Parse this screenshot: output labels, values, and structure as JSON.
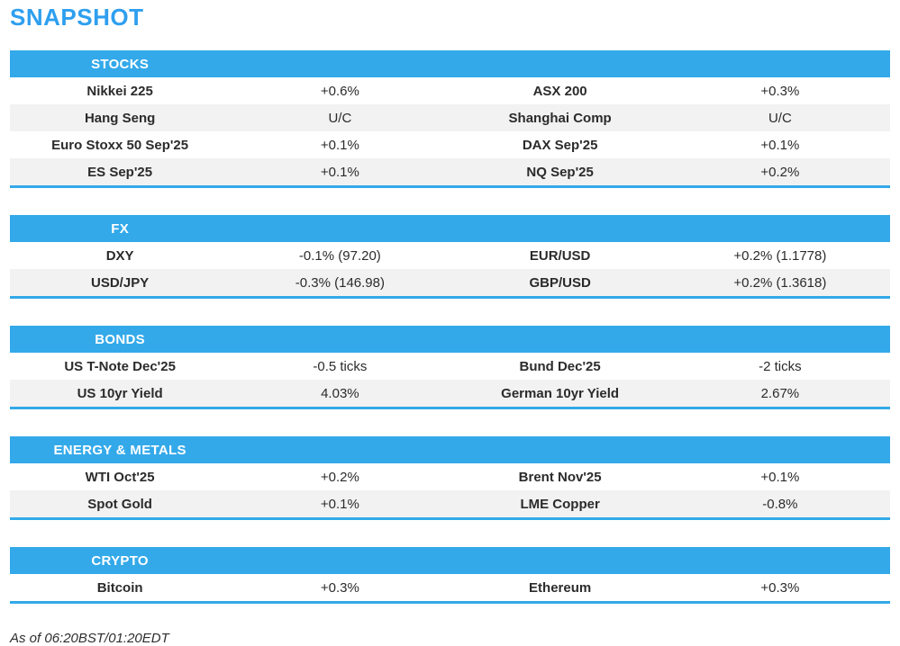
{
  "page_title": "SNAPSHOT",
  "colors": {
    "accent": "#33A9E9",
    "title": "#2E9FEF",
    "row_alt": "#F2F2F2",
    "text": "#2B2B2B"
  },
  "sections": [
    {
      "title": "STOCKS",
      "rows": [
        {
          "left_label": "Nikkei 225",
          "left_value": "+0.6%",
          "right_label": "ASX 200",
          "right_value": "+0.3%"
        },
        {
          "left_label": "Hang Seng",
          "left_value": "U/C",
          "right_label": "Shanghai Comp",
          "right_value": "U/C"
        },
        {
          "left_label": "Euro Stoxx 50 Sep'25",
          "left_value": "+0.1%",
          "right_label": "DAX Sep'25",
          "right_value": "+0.1%"
        },
        {
          "left_label": "ES Sep'25",
          "left_value": "+0.1%",
          "right_label": "NQ Sep'25",
          "right_value": "+0.2%"
        }
      ]
    },
    {
      "title": "FX",
      "rows": [
        {
          "left_label": "DXY",
          "left_value": "-0.1% (97.20)",
          "right_label": "EUR/USD",
          "right_value": "+0.2% (1.1778)"
        },
        {
          "left_label": "USD/JPY",
          "left_value": "-0.3% (146.98)",
          "right_label": "GBP/USD",
          "right_value": "+0.2% (1.3618)"
        }
      ]
    },
    {
      "title": "BONDS",
      "rows": [
        {
          "left_label": "US T-Note Dec'25",
          "left_value": "-0.5 ticks",
          "right_label": "Bund Dec'25",
          "right_value": "-2 ticks"
        },
        {
          "left_label": "US 10yr Yield",
          "left_value": "4.03%",
          "right_label": "German 10yr Yield",
          "right_value": "2.67%"
        }
      ]
    },
    {
      "title": "ENERGY & METALS",
      "rows": [
        {
          "left_label": "WTI Oct'25",
          "left_value": "+0.2%",
          "right_label": "Brent Nov'25",
          "right_value": "+0.1%"
        },
        {
          "left_label": "Spot Gold",
          "left_value": "+0.1%",
          "right_label": "LME Copper",
          "right_value": "-0.8%"
        }
      ]
    },
    {
      "title": "CRYPTO",
      "rows": [
        {
          "left_label": "Bitcoin",
          "left_value": "+0.3%",
          "right_label": "Ethereum",
          "right_value": "+0.3%"
        }
      ]
    }
  ],
  "footer": {
    "as_of": "As of 06:20BST/01:20EDT"
  }
}
